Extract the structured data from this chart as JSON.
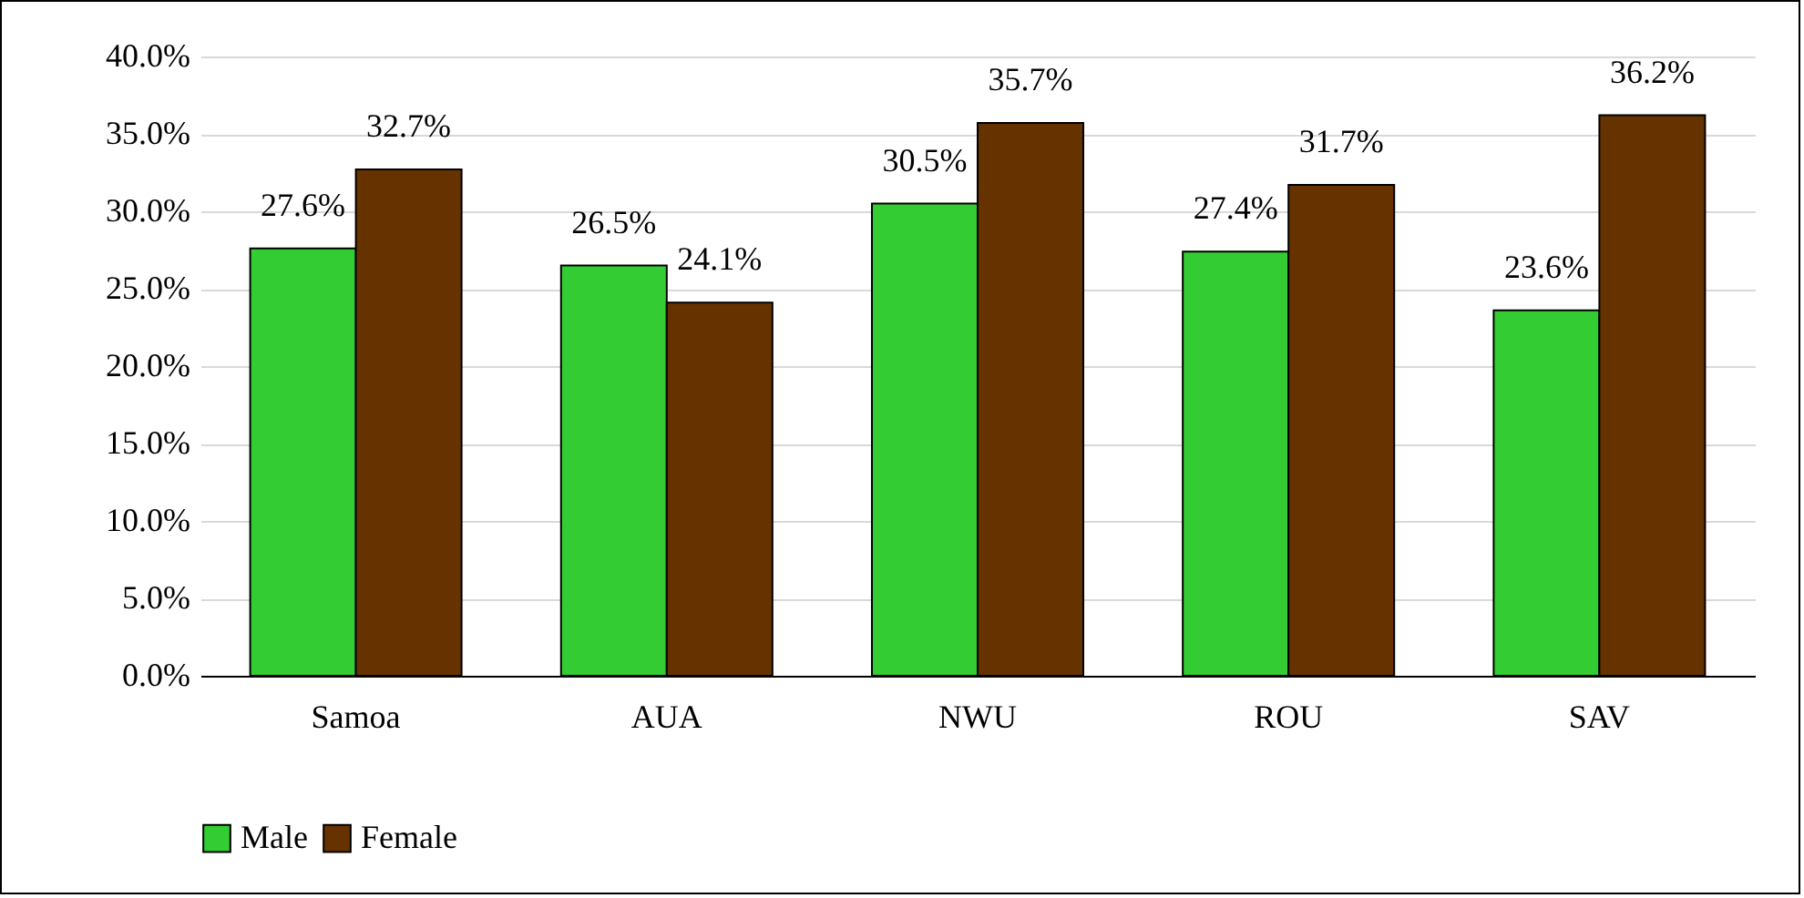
{
  "chart_data": {
    "type": "bar",
    "categories": [
      "Samoa",
      "AUA",
      "NWU",
      "ROU",
      "SAV"
    ],
    "series": [
      {
        "name": "Male",
        "color": "#33cc33",
        "values": [
          27.6,
          26.5,
          30.5,
          27.4,
          23.6
        ],
        "value_labels": [
          "27.6%",
          "26.5%",
          "30.5%",
          "27.4%",
          "23.6%"
        ]
      },
      {
        "name": "Female",
        "color": "#663300",
        "values": [
          32.7,
          24.1,
          35.7,
          31.7,
          36.2
        ],
        "value_labels": [
          "32.7%",
          "24.1%",
          "35.7%",
          "31.7%",
          "36.2%"
        ]
      }
    ],
    "ylim": [
      0,
      40
    ],
    "yticks": [
      {
        "value": 0,
        "label": "0.0%"
      },
      {
        "value": 5,
        "label": "5.0%"
      },
      {
        "value": 10,
        "label": "10.0%"
      },
      {
        "value": 15,
        "label": "15.0%"
      },
      {
        "value": 20,
        "label": "20.0%"
      },
      {
        "value": 25,
        "label": "25.0%"
      },
      {
        "value": 30,
        "label": "30.0%"
      },
      {
        "value": 35,
        "label": "35.0%"
      },
      {
        "value": 40,
        "label": "40.0%"
      }
    ],
    "grid": "y",
    "legend": "bottom"
  }
}
